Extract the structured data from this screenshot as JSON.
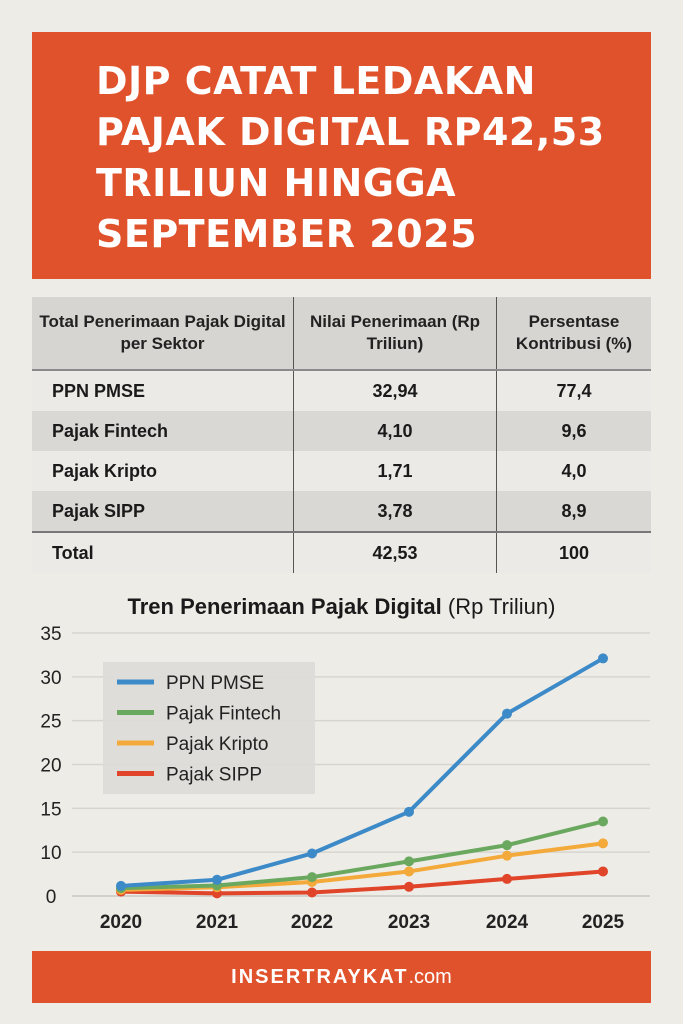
{
  "header": {
    "title": "DJP CATAT LEDAKAN PAJAK DIGITAL RP42,53 TRILIUN HINGGA SEPTEMBER 2025"
  },
  "table": {
    "headers": [
      "Total Penerimaan Pajak Digital per Sektor",
      "Nilai Penerimaan (Rp Triliun)",
      "Persentase Kontribusi (%)"
    ],
    "rows": [
      [
        "PPN PMSE",
        "32,94",
        "77,4"
      ],
      [
        "Pajak Fintech",
        "4,10",
        "9,6"
      ],
      [
        "Pajak Kripto",
        "1,71",
        "4,0"
      ],
      [
        "Pajak SIPP",
        "3,78",
        "8,9"
      ],
      [
        "Total",
        "42,53",
        "100"
      ]
    ]
  },
  "chart_data": {
    "type": "line",
    "title": "Tren Penerimaan Pajak Digital",
    "title_unit": "(Rp Triliun)",
    "x": [
      "2020",
      "2021",
      "2022",
      "2023",
      "2024",
      "2025"
    ],
    "y_ticks": [
      "0",
      "10",
      "15",
      "20",
      "25",
      "30",
      "35"
    ],
    "y_tick_values": [
      0,
      10,
      15,
      20,
      25,
      30,
      35
    ],
    "ylim": [
      0,
      35
    ],
    "grid": true,
    "legend_position": "top-left",
    "series": [
      {
        "name": "PPN PMSE",
        "color": "#3d8ac8",
        "values": [
          2.3,
          3.7,
          9.7,
          14.6,
          25.8,
          32.1
        ]
      },
      {
        "name": "Pajak Fintech",
        "color": "#6aa860",
        "values": [
          1.8,
          2.4,
          4.3,
          7.9,
          10.8,
          13.5
        ]
      },
      {
        "name": "Pajak Kripto",
        "color": "#f4aa3a",
        "values": [
          1.4,
          2.0,
          3.2,
          5.6,
          9.2,
          11.0
        ]
      },
      {
        "name": "Pajak SIPP",
        "color": "#e0452a",
        "values": [
          1.0,
          0.6,
          0.8,
          2.1,
          3.9,
          5.6
        ]
      }
    ]
  },
  "footer": {
    "brand": "INSERTRAYKAT",
    "domain": ".com"
  }
}
